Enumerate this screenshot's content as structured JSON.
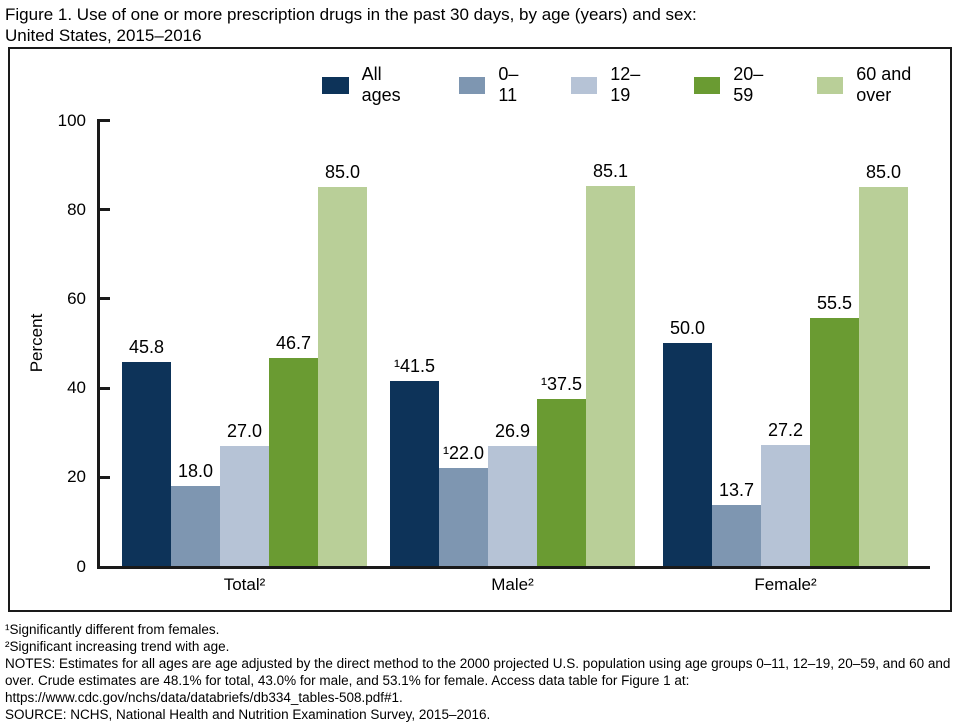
{
  "title_line1": "Figure 1. Use of one or more prescription drugs in the past 30 days, by age (years) and sex:",
  "title_line2": "United States, 2015–2016",
  "chart_data": {
    "type": "bar",
    "title": "Use of one or more prescription drugs in the past 30 days, by age (years) and sex: United States, 2015–2016",
    "categories": [
      "Total²",
      "Male²",
      "Female²"
    ],
    "series": [
      {
        "name": "All ages",
        "color": "#0d3359",
        "values": [
          45.8,
          41.5,
          50.0
        ],
        "labels": [
          "45.8",
          "¹41.5",
          "50.0"
        ]
      },
      {
        "name": "0–11",
        "color": "#7e96b1",
        "values": [
          18.0,
          22.0,
          13.7
        ],
        "labels": [
          "18.0",
          "¹22.0",
          "13.7"
        ]
      },
      {
        "name": "12–19",
        "color": "#b6c3d6",
        "values": [
          27.0,
          26.9,
          27.2
        ],
        "labels": [
          "27.0",
          "26.9",
          "27.2"
        ]
      },
      {
        "name": "20–59",
        "color": "#6a9b32",
        "values": [
          46.7,
          37.5,
          55.5
        ],
        "labels": [
          "46.7",
          "¹37.5",
          "55.5"
        ]
      },
      {
        "name": "60 and over",
        "color": "#b9cf98",
        "values": [
          85.0,
          85.1,
          85.0
        ],
        "labels": [
          "85.0",
          "85.1",
          "85.0"
        ]
      }
    ],
    "xlabel": "",
    "ylabel": "Percent",
    "ylim": [
      0,
      100
    ],
    "yticks": [
      0,
      20,
      40,
      60,
      80,
      100
    ],
    "legend_position": "top",
    "grid": false
  },
  "footnotes": [
    "¹Significantly different from females.",
    "²Significant increasing trend with age.",
    "NOTES: Estimates for all ages are age adjusted by the direct method to the 2000 projected U.S. population using age groups 0–11, 12–19, 20–59, and 60 and",
    "over. Crude estimates are 48.1% for total, 43.0% for male, and 53.1% for female. Access data table for Figure 1 at:",
    "https://www.cdc.gov/nchs/data/databriefs/db334_tables-508.pdf#1.",
    "SOURCE: NCHS, National Health and Nutrition Examination Survey, 2015–2016."
  ]
}
